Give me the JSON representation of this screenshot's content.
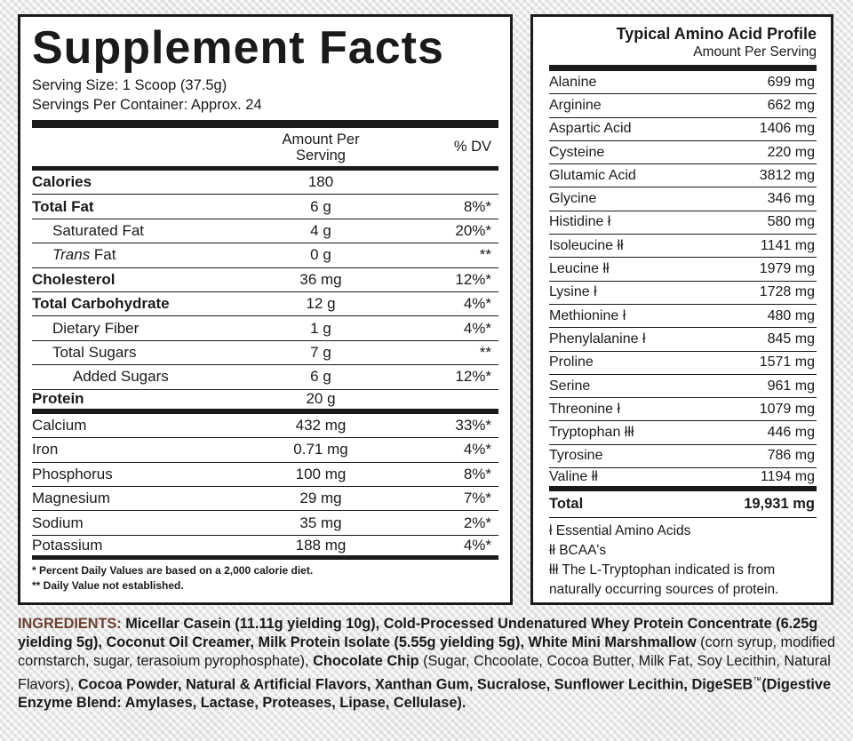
{
  "supplement_facts": {
    "title": "Supplement Facts",
    "serving_size": "Serving Size: 1 Scoop (37.5g)",
    "servings_per_container": "Servings Per Container: Approx. 24",
    "col_amount_line1": "Amount Per",
    "col_amount_line2": "Serving",
    "col_dv": "% DV",
    "rows": [
      {
        "name": "Calories",
        "amount": "180",
        "dv": ""
      },
      {
        "name": "Total Fat",
        "amount": "6 g",
        "dv": "8%*"
      },
      {
        "name": "Saturated Fat",
        "amount": "4 g",
        "dv": "20%*"
      },
      {
        "name_italic": "Trans",
        "name_rest": " Fat",
        "amount": "0 g",
        "dv": "**"
      },
      {
        "name": "Cholesterol",
        "amount": "36 mg",
        "dv": "12%*"
      },
      {
        "name": "Total Carbohydrate",
        "amount": "12 g",
        "dv": "4%*"
      },
      {
        "name": "Dietary Fiber",
        "amount": "1 g",
        "dv": "4%*"
      },
      {
        "name": "Total Sugars",
        "amount": "7 g",
        "dv": "**"
      },
      {
        "name": "Added Sugars",
        "amount": "6 g",
        "dv": "12%*"
      },
      {
        "name": "Protein",
        "amount": "20 g",
        "dv": ""
      },
      {
        "name": "Calcium",
        "amount": "432 mg",
        "dv": "33%*"
      },
      {
        "name": "Iron",
        "amount": "0.71 mg",
        "dv": "4%*"
      },
      {
        "name": "Phosphorus",
        "amount": "100 mg",
        "dv": "8%*"
      },
      {
        "name": "Magnesium",
        "amount": "29 mg",
        "dv": "7%*"
      },
      {
        "name": "Sodium",
        "amount": "35 mg",
        "dv": "2%*"
      },
      {
        "name": "Potassium",
        "amount": "188 mg",
        "dv": "4%*"
      }
    ],
    "footnote_1": "* Percent Daily Values are based on a 2,000 calorie diet.",
    "footnote_2": "** Daily Value not established."
  },
  "amino_profile": {
    "title": "Typical Amino Acid Profile",
    "subtitle": "Amount Per Serving",
    "rows": [
      {
        "name": "Alanine",
        "value": "699 mg"
      },
      {
        "name": "Arginine",
        "value": "662 mg"
      },
      {
        "name": "Aspartic Acid",
        "value": "1406 mg"
      },
      {
        "name": "Cysteine",
        "value": "220 mg"
      },
      {
        "name": "Glutamic Acid",
        "value": "3812 mg"
      },
      {
        "name": "Glycine",
        "value": "346 mg"
      },
      {
        "name": "Histidine ł",
        "value": "580 mg"
      },
      {
        "name": "Isoleucine łł",
        "value": "1141 mg"
      },
      {
        "name": "Leucine łł",
        "value": "1979 mg"
      },
      {
        "name": "Lysine ł",
        "value": "1728 mg"
      },
      {
        "name": "Methionine ł",
        "value": "480 mg"
      },
      {
        "name": "Phenylalanine ł",
        "value": "845 mg"
      },
      {
        "name": "Proline",
        "value": "1571 mg"
      },
      {
        "name": "Serine",
        "value": "961 mg"
      },
      {
        "name": "Threonine ł",
        "value": "1079 mg"
      },
      {
        "name": "Tryptophan łłł",
        "value": "446 mg"
      },
      {
        "name": "Tyrosine",
        "value": "786 mg"
      },
      {
        "name": "Valine łł",
        "value": "1194 mg"
      }
    ],
    "total_label": "Total",
    "total_value": "19,931 mg",
    "note_essential": "ł Essential Amino Acids",
    "note_bcaa": "łł BCAA's",
    "note_tryptophan_1": "łłł The L-Tryptophan indicated is from",
    "note_tryptophan_2": "naturally occurring sources of protein."
  },
  "ingredients": {
    "label": "INGREDIENTS:",
    "p1": " Micellar Casein (11.11g yielding 10g), Cold-Processed Undenatured Whey Protein Concentrate (6.25g yielding 5g), Coconut Oil Creamer, Milk Protein Isolate (5.55g yielding 5g), White Mini Marshmallow",
    "p2": " (corn syrup, modified cornstarch, sugar, terasoium pyrophosphate),",
    "p3": " Chocolate Chip",
    "p4": " (Sugar, Chcoolate, Cocoa Butter, Milk Fat, Soy Lecithin, Natural Flavors),",
    "p5": " Cocoa Powder, Natural & Artificial Flavors, Xanthan Gum, Sucralose, Sunflower Lecithin, DigeSEB",
    "tm": "™",
    "p6": "(Digestive Enzyme Blend: Amylases, Lactase, Proteases, Lipase, Cellulase)."
  }
}
